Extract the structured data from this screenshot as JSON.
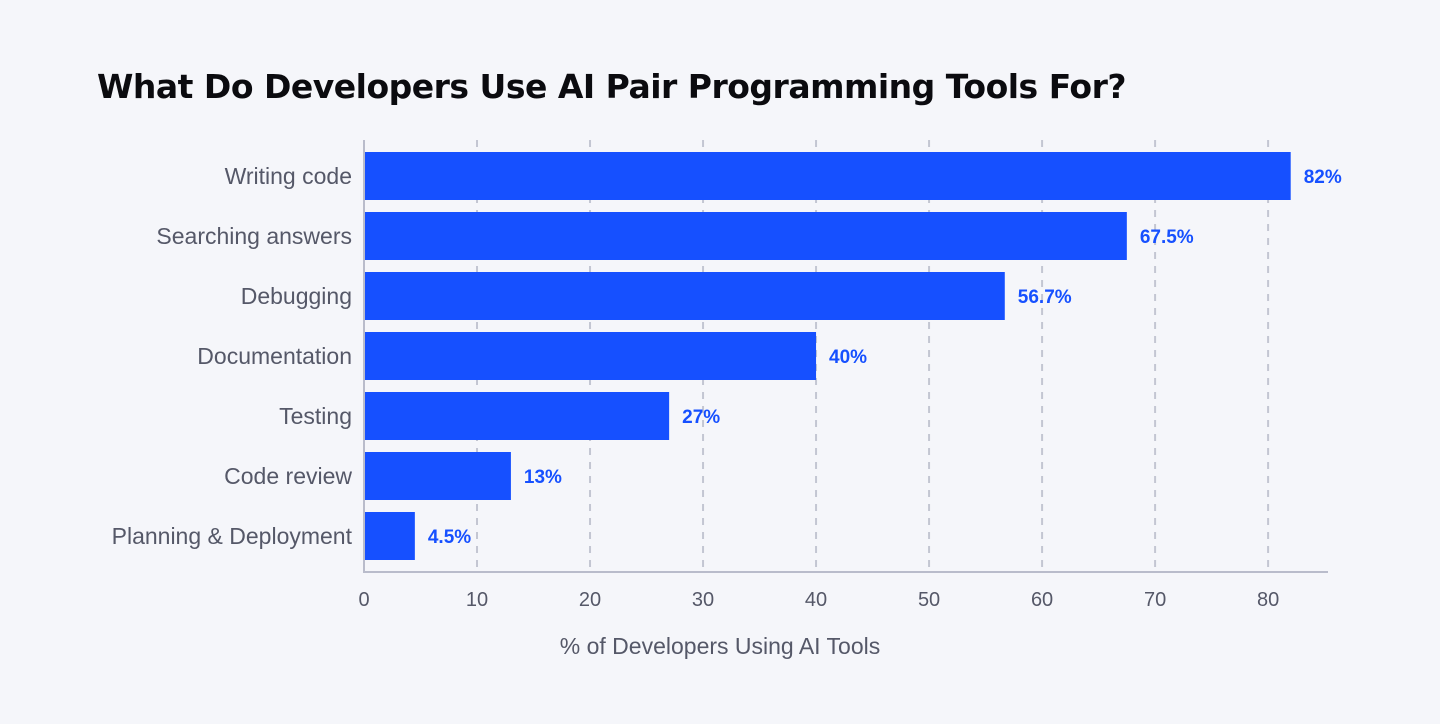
{
  "chart_data": {
    "type": "bar",
    "orientation": "horizontal",
    "title": "What Do Developers Use AI Pair Programming Tools For?",
    "xlabel": "% of Developers Using AI Tools",
    "ylabel": "",
    "categories": [
      "Writing code",
      "Searching answers",
      "Debugging",
      "Documentation",
      "Testing",
      "Code review",
      "Planning & Deployment"
    ],
    "values": [
      82,
      67.5,
      56.7,
      40,
      27,
      13,
      4.5
    ],
    "data_labels": [
      "82%",
      "67.5%",
      "56.7%",
      "40%",
      "27%",
      "13%",
      "4.5%"
    ],
    "xlim": [
      0,
      85.3
    ],
    "xticks": [
      0,
      10,
      20,
      30,
      40,
      50,
      60,
      70,
      80
    ],
    "grid": "vertical dashed",
    "legend": "none",
    "colors": {
      "bar": "#1650ff",
      "label": "#1650ff",
      "grid": "#c3c6d2",
      "axis": "#b9bccb",
      "background": "#f5f6fa"
    }
  }
}
